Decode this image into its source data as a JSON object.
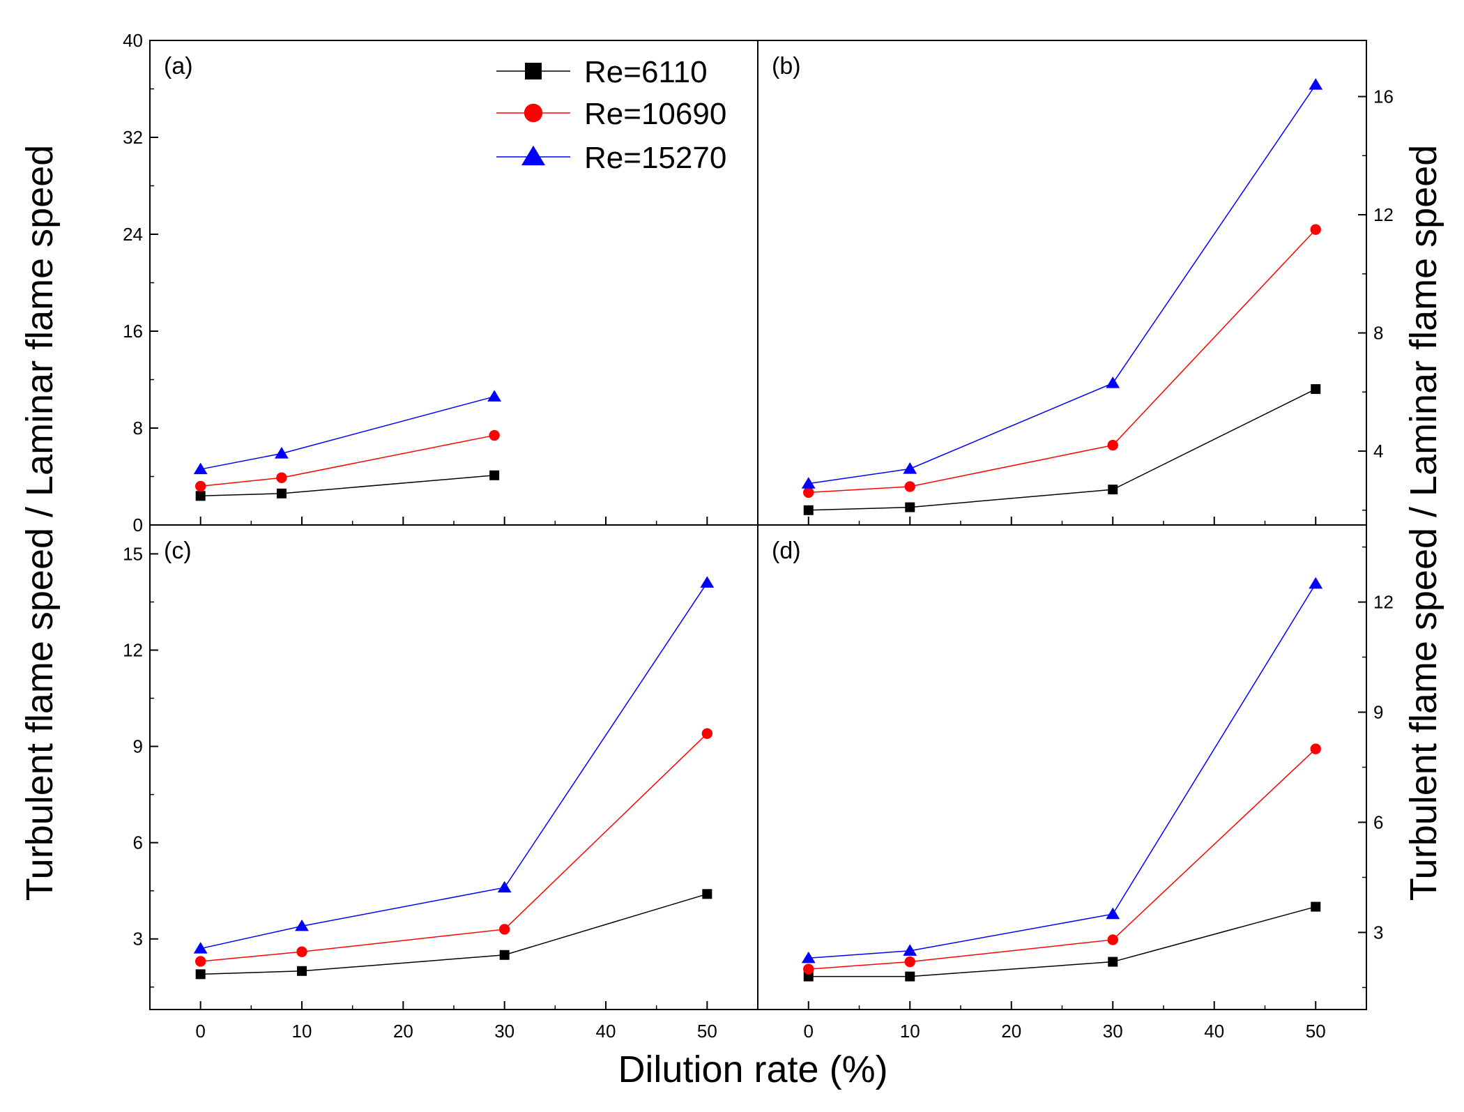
{
  "chart_data": {
    "type": "line",
    "xlabel": "Dilution rate (%)",
    "ylabel_left": "Turbulent flame speed / Laminar flame speed",
    "ylabel_right": "Turbulent flame speed / Laminar flame speed",
    "legend": {
      "placement": "top-right of panel (a)",
      "entries": [
        {
          "name": "Re=6110",
          "marker": "square",
          "color": "#000000"
        },
        {
          "name": "Re=10690",
          "marker": "circle",
          "color": "#ff0000"
        },
        {
          "name": "Re=15270",
          "marker": "triangle",
          "color": "#0000ff"
        }
      ]
    },
    "x_ticks": [
      "0",
      "10",
      "20",
      "30",
      "40",
      "50"
    ],
    "panels": [
      {
        "label": "(a)",
        "xlim": [
          -5,
          55
        ],
        "ylim": [
          0,
          40
        ],
        "y_ticks": [
          "0",
          "8",
          "16",
          "24",
          "32",
          "40"
        ],
        "y_axis_side": "left",
        "series": [
          {
            "name": "Re=6110",
            "x": [
              0,
              8,
              29
            ],
            "y": [
              2.4,
              2.6,
              4.1
            ]
          },
          {
            "name": "Re=10690",
            "x": [
              0,
              8,
              29
            ],
            "y": [
              3.2,
              3.9,
              7.4
            ]
          },
          {
            "name": "Re=15270",
            "x": [
              0,
              8,
              29
            ],
            "y": [
              4.6,
              5.9,
              10.6
            ]
          }
        ]
      },
      {
        "label": "(b)",
        "xlim": [
          -5,
          55
        ],
        "ylim": [
          1.5,
          17.9
        ],
        "y_ticks": [
          "4",
          "8",
          "12",
          "16"
        ],
        "y_axis_side": "right",
        "series": [
          {
            "name": "Re=6110",
            "x": [
              0,
              10,
              30,
              50
            ],
            "y": [
              2.0,
              2.1,
              2.7,
              6.1
            ]
          },
          {
            "name": "Re=10690",
            "x": [
              0,
              10,
              30,
              50
            ],
            "y": [
              2.6,
              2.8,
              4.2,
              11.5
            ]
          },
          {
            "name": "Re=15270",
            "x": [
              0,
              10,
              30,
              50
            ],
            "y": [
              2.9,
              3.4,
              6.3,
              16.4
            ]
          }
        ]
      },
      {
        "label": "(c)",
        "xlim": [
          -5,
          55
        ],
        "ylim": [
          0.8,
          15.9
        ],
        "y_ticks": [
          "3",
          "6",
          "9",
          "12",
          "15"
        ],
        "y_axis_side": "left",
        "series": [
          {
            "name": "Re=6110",
            "x": [
              0,
              10,
              30,
              50
            ],
            "y": [
              1.9,
              2.0,
              2.5,
              4.4
            ]
          },
          {
            "name": "Re=10690",
            "x": [
              0,
              10,
              30,
              50
            ],
            "y": [
              2.3,
              2.6,
              3.3,
              9.4
            ]
          },
          {
            "name": "Re=15270",
            "x": [
              0,
              10,
              30,
              50
            ],
            "y": [
              2.7,
              3.4,
              4.6,
              14.1
            ]
          }
        ]
      },
      {
        "label": "(d)",
        "xlim": [
          -5,
          55
        ],
        "ylim": [
          0.9,
          14.1
        ],
        "y_ticks": [
          "3",
          "6",
          "9",
          "12"
        ],
        "y_axis_side": "right",
        "series": [
          {
            "name": "Re=6110",
            "x": [
              0,
              10,
              30,
              50
            ],
            "y": [
              1.8,
              1.8,
              2.2,
              3.7
            ]
          },
          {
            "name": "Re=10690",
            "x": [
              0,
              10,
              30,
              50
            ],
            "y": [
              2.0,
              2.2,
              2.8,
              8.0
            ]
          },
          {
            "name": "Re=15270",
            "x": [
              0,
              10,
              30,
              50
            ],
            "y": [
              2.3,
              2.5,
              3.5,
              12.5
            ]
          }
        ]
      }
    ]
  }
}
